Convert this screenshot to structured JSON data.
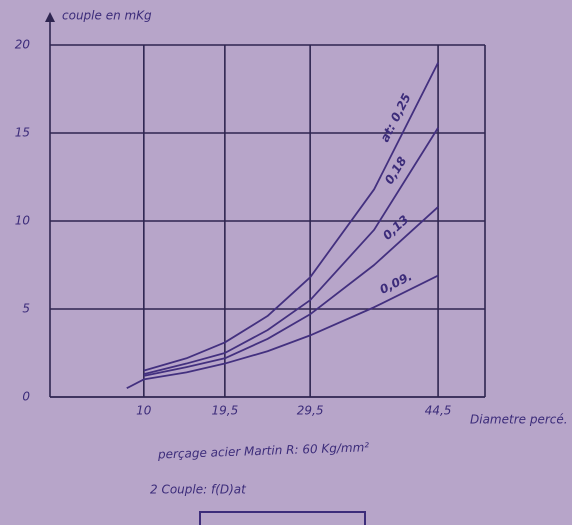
{
  "chart_data": {
    "type": "line",
    "y_label": "couple en mKg",
    "x_label": "Diametre percé.",
    "caption": "perçage acier Martin R: 60 Kg/mm²",
    "subcaption": "2 Couple: f(D)at",
    "x": [
      8,
      10,
      15,
      19.5,
      24.5,
      29.5,
      37,
      44.5
    ],
    "series": [
      {
        "name": "at: 0,25",
        "color": "#43307f",
        "values": [
          null,
          1.5,
          2.2,
          3.1,
          4.6,
          6.8,
          11.8,
          19
        ]
      },
      {
        "name": "0,18",
        "color": "#43307f",
        "values": [
          null,
          1.3,
          1.9,
          2.5,
          3.8,
          5.5,
          9.5,
          15.3
        ]
      },
      {
        "name": "0,13",
        "color": "#43307f",
        "values": [
          null,
          1.2,
          1.7,
          2.2,
          3.3,
          4.7,
          7.5,
          10.8
        ]
      },
      {
        "name": "0,09.",
        "color": "#43307f",
        "values": [
          0.5,
          1.0,
          1.4,
          1.9,
          2.6,
          3.5,
          5.1,
          6.9
        ]
      }
    ],
    "xlim": [
      -1,
      50
    ],
    "xticks": [
      10,
      {
        "value": 19.5,
        "label": "19,5"
      },
      {
        "value": 29.5,
        "label": "29,5"
      },
      {
        "value": 44.5,
        "label": "44,5"
      }
    ],
    "ylim": [
      0,
      20
    ],
    "yticks": [
      0,
      5,
      10,
      15,
      20
    ],
    "grid": true
  }
}
